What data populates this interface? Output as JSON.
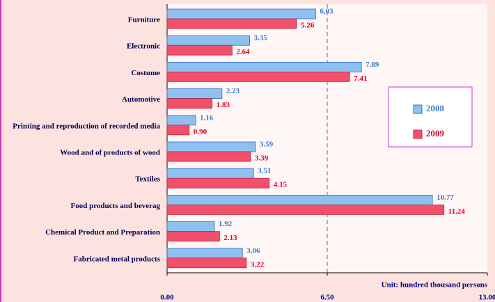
{
  "chart_data": {
    "type": "hbar",
    "categories": [
      "Furniture",
      "Electronic",
      "Costume",
      "Automotive",
      "Printing and reproduction of recorded media",
      "Wood and of  products of wood",
      "Textiles",
      "Food products and beverag",
      "Chemical Product and Preparation",
      "Fabricated metal products"
    ],
    "series": [
      {
        "name": "2008",
        "color": "#8ec1ef",
        "values": [
          6.03,
          3.35,
          7.89,
          2.23,
          1.16,
          3.59,
          3.51,
          10.77,
          1.92,
          3.06
        ],
        "value_labels": [
          "6,03",
          "3.35",
          "7.89",
          "2.23",
          "1.16",
          "3.59",
          "3.51",
          "10.77",
          "1.92",
          "3.06"
        ]
      },
      {
        "name": "2009",
        "color": "#f0506a",
        "values": [
          5.26,
          2.64,
          7.41,
          1.83,
          0.9,
          3.39,
          4.15,
          11.24,
          2.13,
          3.22
        ],
        "value_labels": [
          "5.26",
          "2.64",
          "7.41",
          "1.83",
          "0.90",
          "3.39",
          "4.15",
          "11.24",
          "2.13",
          "3.22"
        ]
      }
    ],
    "xlim": [
      0,
      13
    ],
    "xticks": [
      {
        "value": 0,
        "label": "0.00"
      },
      {
        "value": 6.5,
        "label": "6.50"
      },
      {
        "value": 13,
        "label": "13.00"
      }
    ],
    "annotation": "Unit: hundred thousand persons",
    "legend": "right"
  }
}
